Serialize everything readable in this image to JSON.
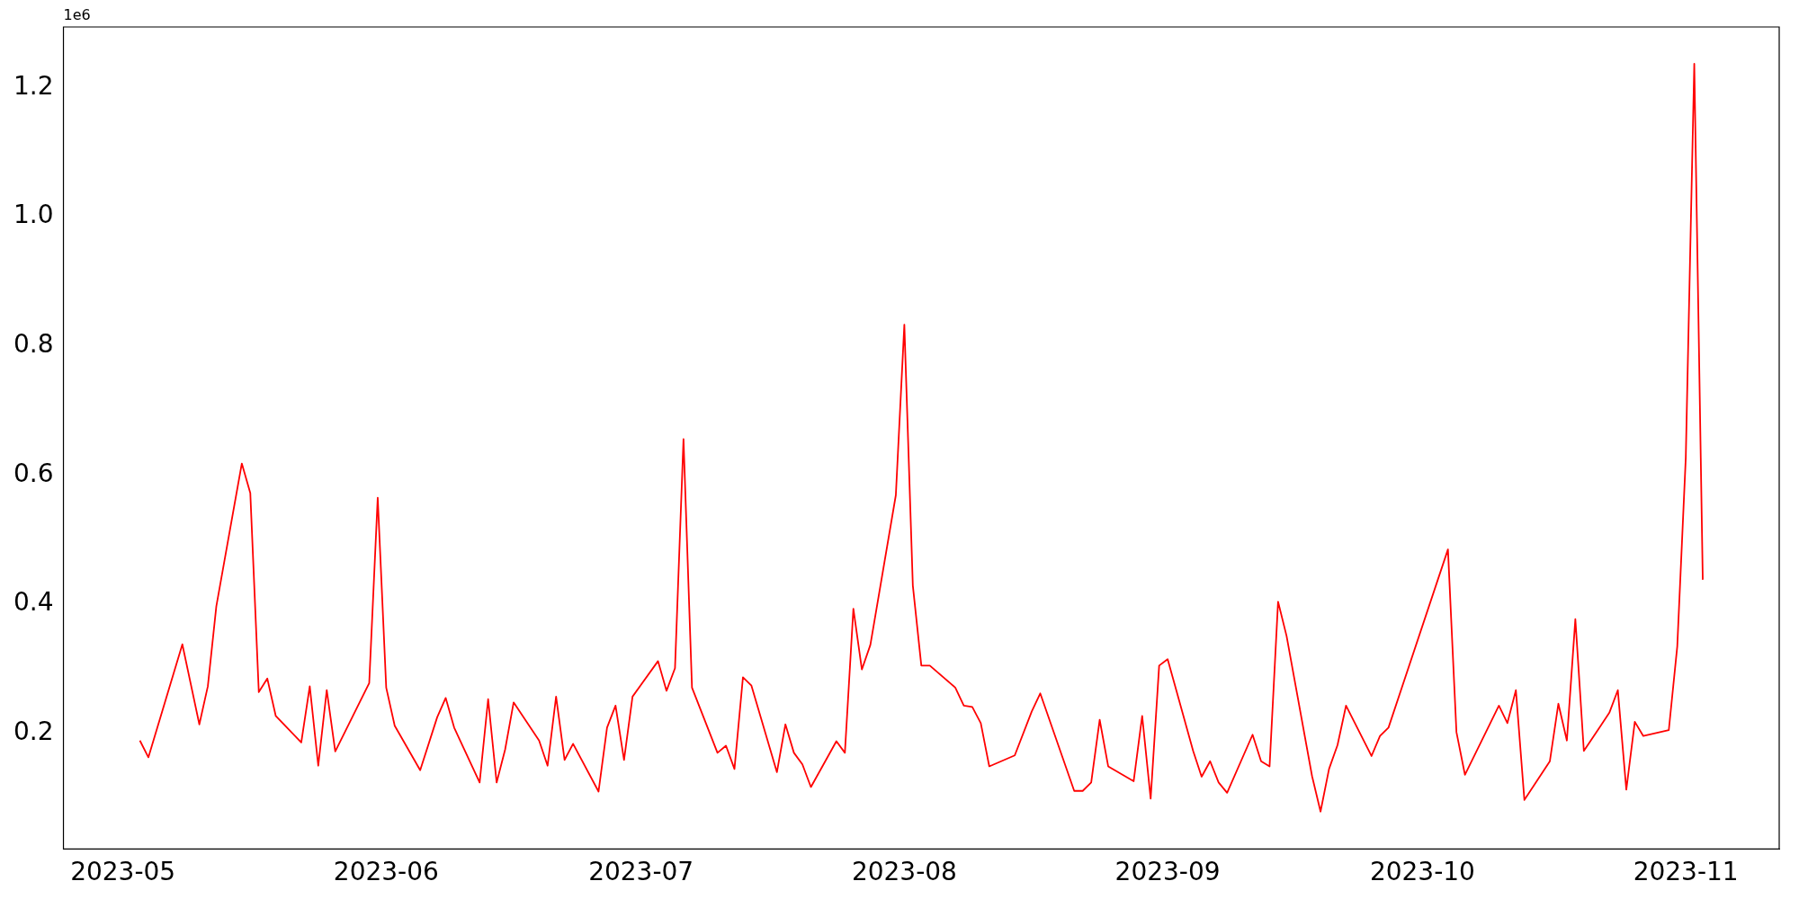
{
  "chart_data": {
    "type": "line",
    "annotations": [
      "1e6"
    ],
    "color": "#ff0000",
    "x": [
      "2023-05-03",
      "2023-05-04",
      "2023-05-08",
      "2023-05-10",
      "2023-05-11",
      "2023-05-12",
      "2023-05-15",
      "2023-05-16",
      "2023-05-17",
      "2023-05-18",
      "2023-05-19",
      "2023-05-22",
      "2023-05-23",
      "2023-05-24",
      "2023-05-25",
      "2023-05-26",
      "2023-05-30",
      "2023-05-31",
      "2023-06-01",
      "2023-06-02",
      "2023-06-05",
      "2023-06-07",
      "2023-06-08",
      "2023-06-09",
      "2023-06-12",
      "2023-06-13",
      "2023-06-14",
      "2023-06-15",
      "2023-06-16",
      "2023-06-19",
      "2023-06-20",
      "2023-06-21",
      "2023-06-22",
      "2023-06-23",
      "2023-06-26",
      "2023-06-27",
      "2023-06-28",
      "2023-06-29",
      "2023-06-30",
      "2023-07-03",
      "2023-07-04",
      "2023-07-05",
      "2023-07-06",
      "2023-07-07",
      "2023-07-10",
      "2023-07-11",
      "2023-07-12",
      "2023-07-13",
      "2023-07-14",
      "2023-07-17",
      "2023-07-18",
      "2023-07-19",
      "2023-07-20",
      "2023-07-21",
      "2023-07-24",
      "2023-07-25",
      "2023-07-26",
      "2023-07-27",
      "2023-07-28",
      "2023-07-31",
      "2023-08-01",
      "2023-08-02",
      "2023-08-03",
      "2023-08-04",
      "2023-08-07",
      "2023-08-08",
      "2023-08-09",
      "2023-08-10",
      "2023-08-11",
      "2023-08-14",
      "2023-08-16",
      "2023-08-17",
      "2023-08-21",
      "2023-08-22",
      "2023-08-23",
      "2023-08-24",
      "2023-08-25",
      "2023-08-28",
      "2023-08-29",
      "2023-08-30",
      "2023-08-31",
      "2023-09-01",
      "2023-09-04",
      "2023-09-05",
      "2023-09-06",
      "2023-09-07",
      "2023-09-08",
      "2023-09-11",
      "2023-09-12",
      "2023-09-13",
      "2023-09-14",
      "2023-09-15",
      "2023-09-18",
      "2023-09-19",
      "2023-09-20",
      "2023-09-21",
      "2023-09-22",
      "2023-09-25",
      "2023-09-26",
      "2023-09-27",
      "2023-10-04",
      "2023-10-05",
      "2023-10-06",
      "2023-10-10",
      "2023-10-11",
      "2023-10-12",
      "2023-10-13",
      "2023-10-16",
      "2023-10-17",
      "2023-10-18",
      "2023-10-19",
      "2023-10-20",
      "2023-10-23",
      "2023-10-24",
      "2023-10-25",
      "2023-10-26",
      "2023-10-27",
      "2023-10-30",
      "2023-10-31",
      "2023-11-01",
      "2023-11-02",
      "2023-11-03"
    ],
    "values": [
      0.189,
      0.163,
      0.338,
      0.214,
      0.273,
      0.397,
      0.618,
      0.572,
      0.264,
      0.285,
      0.227,
      0.186,
      0.273,
      0.15,
      0.267,
      0.172,
      0.278,
      0.565,
      0.271,
      0.212,
      0.143,
      0.225,
      0.255,
      0.209,
      0.124,
      0.253,
      0.124,
      0.175,
      0.248,
      0.189,
      0.15,
      0.257,
      0.159,
      0.184,
      0.11,
      0.209,
      0.243,
      0.159,
      0.257,
      0.312,
      0.266,
      0.301,
      0.656,
      0.271,
      0.17,
      0.181,
      0.145,
      0.287,
      0.274,
      0.14,
      0.214,
      0.17,
      0.152,
      0.117,
      0.188,
      0.17,
      0.393,
      0.299,
      0.337,
      0.569,
      0.833,
      0.429,
      0.305,
      0.305,
      0.271,
      0.243,
      0.241,
      0.216,
      0.149,
      0.166,
      0.234,
      0.262,
      0.111,
      0.111,
      0.124,
      0.221,
      0.149,
      0.126,
      0.227,
      0.099,
      0.305,
      0.315,
      0.173,
      0.133,
      0.157,
      0.124,
      0.108,
      0.198,
      0.157,
      0.149,
      0.404,
      0.351,
      0.134,
      0.079,
      0.145,
      0.182,
      0.243,
      0.165,
      0.196,
      0.209,
      0.485,
      0.202,
      0.136,
      0.243,
      0.216,
      0.267,
      0.097,
      0.157,
      0.246,
      0.189,
      0.377,
      0.173,
      0.232,
      0.267,
      0.113,
      0.218,
      0.196,
      0.205,
      0.335,
      0.627,
      1.237,
      0.438
    ],
    "xlim": [
      "2023-04-24",
      "2023-11-12"
    ],
    "xticks": [
      "2023-05",
      "2023-06",
      "2023-07",
      "2023-08",
      "2023-09",
      "2023-10",
      "2023-11"
    ],
    "ylim": [
      0.021,
      1.294
    ],
    "yticks": [
      0.2,
      0.4,
      0.6,
      0.8,
      {
        "value": 1,
        "label": "1.0"
      },
      1.2
    ]
  }
}
